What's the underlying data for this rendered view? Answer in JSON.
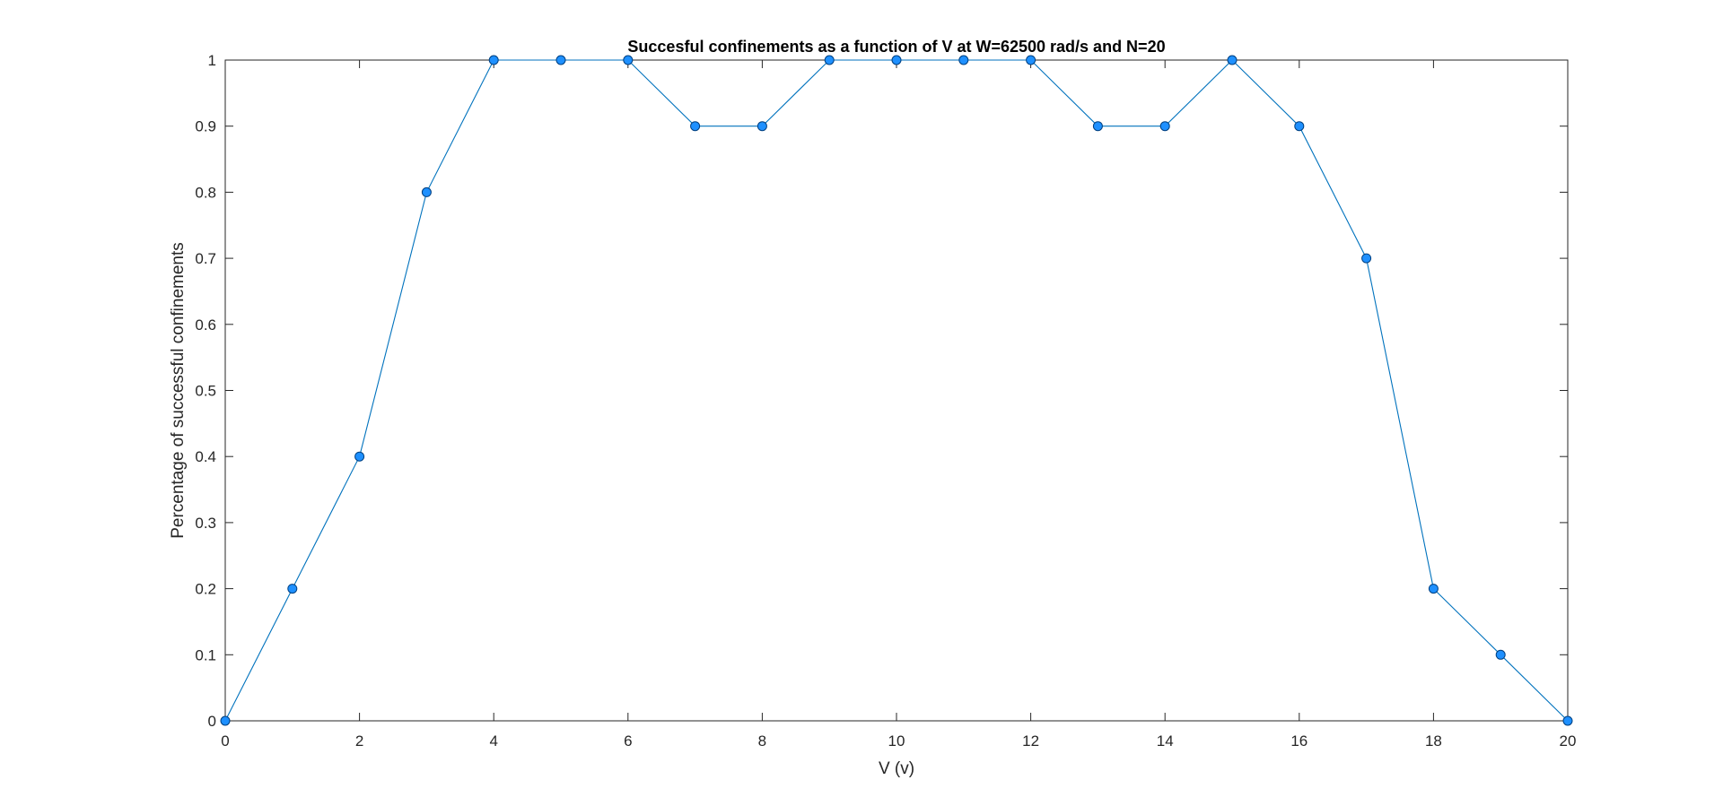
{
  "chart_data": {
    "type": "line",
    "title": "Succesful confinements as a function of V at W=62500 rad/s and N=20",
    "xlabel": "V (v)",
    "ylabel": "Percentage of successful confinements",
    "xlim": [
      0,
      20
    ],
    "ylim": [
      0,
      1
    ],
    "xticks": [
      0,
      2,
      4,
      6,
      8,
      10,
      12,
      14,
      16,
      18,
      20
    ],
    "xtick_labels": [
      "0",
      "2",
      "4",
      "6",
      "8",
      "10",
      "12",
      "14",
      "16",
      "18",
      "20"
    ],
    "yticks": [
      0,
      0.1,
      0.2,
      0.3,
      0.4,
      0.5,
      0.6,
      0.7,
      0.8,
      0.9,
      1
    ],
    "ytick_labels": [
      "0",
      "0.1",
      "0.2",
      "0.3",
      "0.4",
      "0.5",
      "0.6",
      "0.7",
      "0.8",
      "0.9",
      "1"
    ],
    "grid": false,
    "legend": "none",
    "series": [
      {
        "x": [
          0,
          1,
          2,
          3,
          4,
          5,
          6,
          7,
          8,
          9,
          10,
          11,
          12,
          13,
          14,
          15,
          16,
          17,
          18,
          19,
          20
        ],
        "y": [
          0,
          0.2,
          0.4,
          0.8,
          1,
          1,
          1,
          0.9,
          0.9,
          1,
          1,
          1,
          1,
          0.9,
          0.9,
          1,
          0.9,
          0.7,
          0.2,
          0.1,
          0
        ],
        "line_color": "#0072BD",
        "marker": "circle",
        "marker_face_color": "#1E90FF",
        "marker_edge_color": "#003F7F"
      }
    ]
  }
}
